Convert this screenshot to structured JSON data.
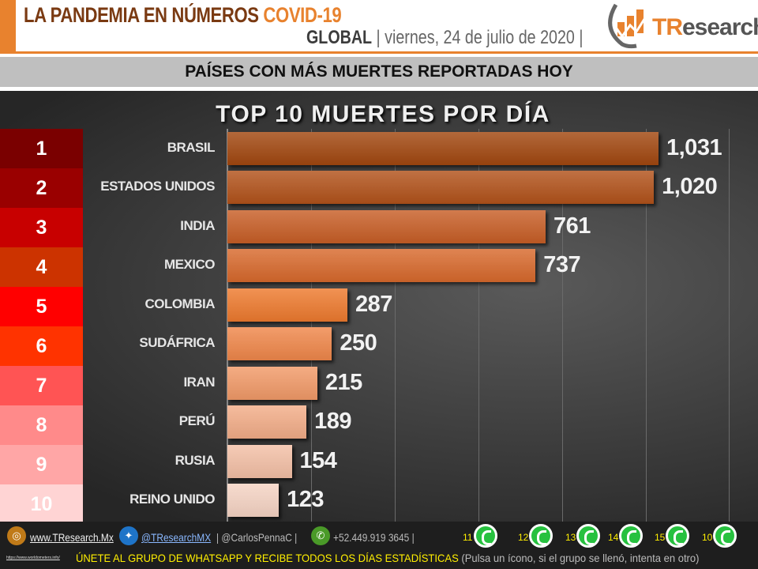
{
  "header": {
    "title_main": "LA PANDEMIA EN NÚMEROS",
    "title_accent": "COVID-19",
    "scope": "GLOBAL",
    "date": "| viernes, 24 de julio de 2020 |",
    "logo_text_accent": "TR",
    "logo_text": "esearch"
  },
  "section_title": "PAÍSES CON MÁS MUERTES REPORTADAS HOY",
  "chart_data": {
    "type": "bar",
    "orientation": "horizontal",
    "title": "TOP 10 MUERTES POR DÍA",
    "ranks": [
      "1",
      "2",
      "3",
      "4",
      "5",
      "6",
      "7",
      "8",
      "9",
      "10"
    ],
    "rank_colors": [
      "#7a0000",
      "#9a0000",
      "#c80000",
      "#cc3300",
      "#ff0000",
      "#ff3300",
      "#ff5454",
      "#ff8a8a",
      "#ffa6a6",
      "#ffd4d4"
    ],
    "categories": [
      "BRASIL",
      "ESTADOS UNIDOS",
      "INDIA",
      "MEXICO",
      "COLOMBIA",
      "SUDÁFRICA",
      "IRAN",
      "PERÚ",
      "RUSIA",
      "REINO UNIDO"
    ],
    "values": [
      1031,
      1020,
      761,
      737,
      287,
      250,
      215,
      189,
      154,
      123
    ],
    "value_labels": [
      "1,031",
      "1,020",
      "761",
      "737",
      "287",
      "250",
      "215",
      "189",
      "154",
      "123"
    ],
    "bar_colors": [
      "#a2470f",
      "#b2521a",
      "#c85e26",
      "#d8692c",
      "#ee7a2e",
      "#f0874a",
      "#f29a68",
      "#f3ad88",
      "#f4c0a6",
      "#f6d4c4"
    ],
    "xlim": [
      0,
      1200
    ],
    "grid": true,
    "grid_step": 200
  },
  "footer": {
    "website": "www.TResearch.Mx",
    "twitter": "@TResearchMX",
    "handle": "| @CarlosPennaC |",
    "phone": "+52.449.919 3645 |",
    "whatsapp_groups": [
      "11",
      "12",
      "13",
      "14",
      "15",
      "10"
    ],
    "source": "https://www.worldometers.info/",
    "cta": "ÚNETE AL GRUPO DE WHATSAPP Y RECIBE TODOS LOS DÍAS ESTADÍSTICAS",
    "cta_note": "(Pulsa un ícono, si el grupo se llenó, intenta en otro)"
  }
}
